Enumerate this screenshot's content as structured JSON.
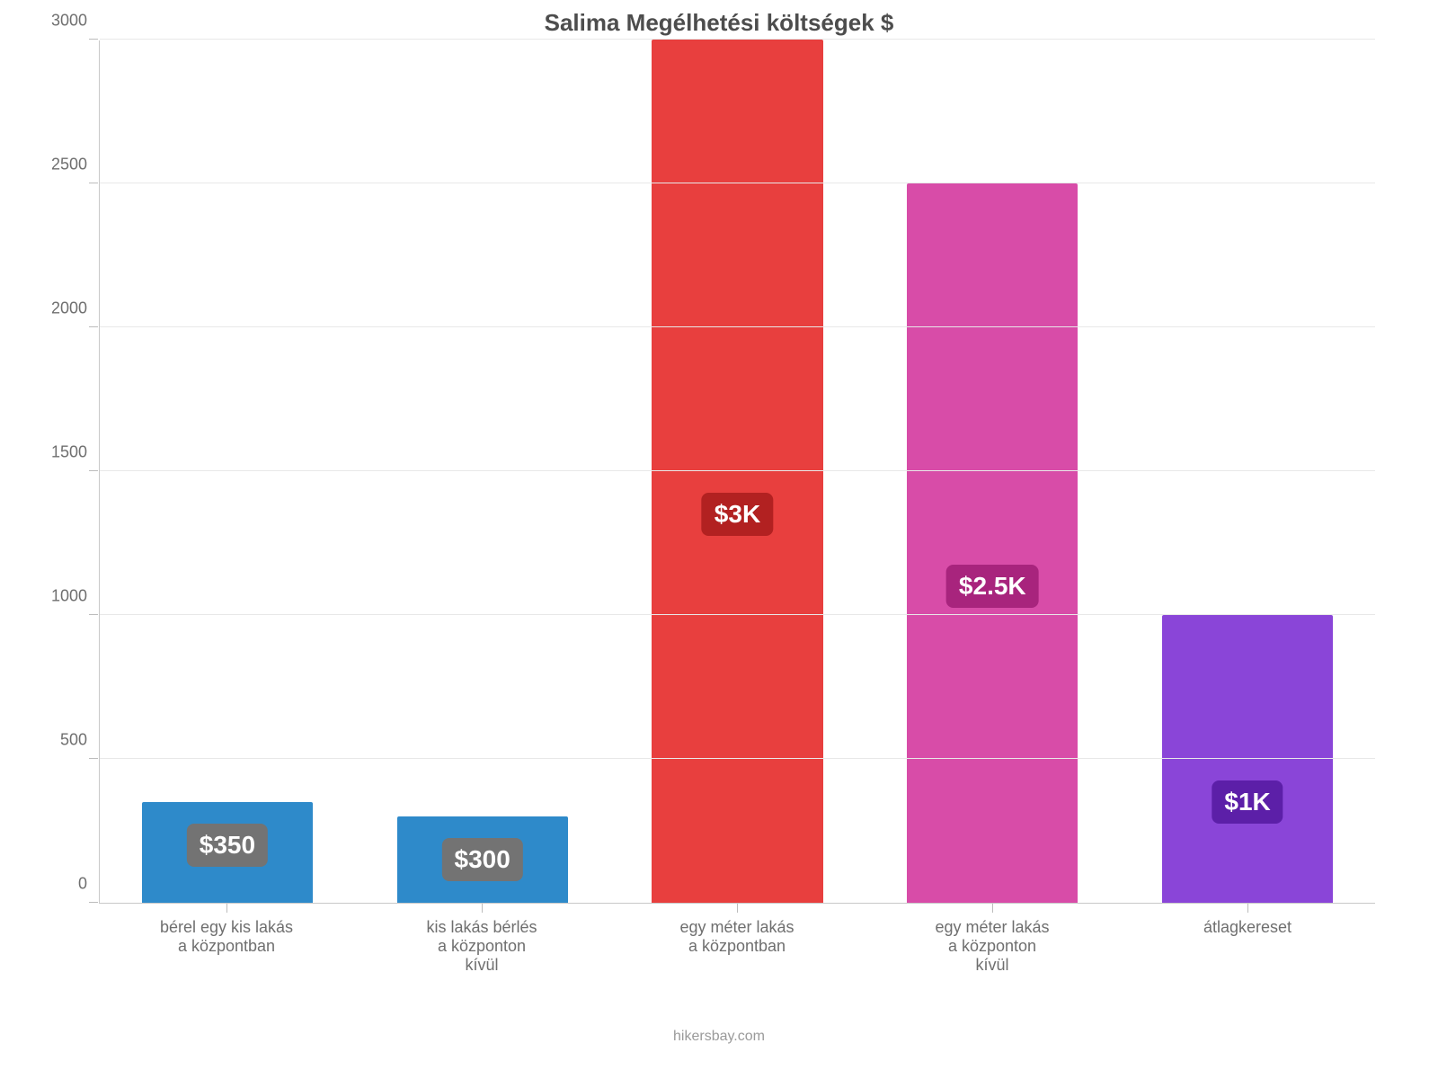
{
  "chart": {
    "type": "bar",
    "title": "Salima Megélhetési költségek $",
    "title_fontsize": 26,
    "title_color": "#4d4d4d",
    "background_color": "#ffffff",
    "grid_color": "#e8e8e8",
    "axis_color": "#c9c9c9",
    "tick_color": "#bcbcbc",
    "label_color": "#6f6f6f",
    "label_fontsize": 18,
    "ylim": [
      0,
      3000
    ],
    "ytick_step": 500,
    "yticks": [
      0,
      500,
      1000,
      1500,
      2000,
      2500,
      3000
    ],
    "bar_width": 0.67,
    "categories": [
      [
        "bérel egy kis lakás",
        "a központban"
      ],
      [
        "kis lakás bérlés",
        "a központon",
        "kívül"
      ],
      [
        "egy méter lakás",
        "a központban"
      ],
      [
        "egy méter lakás",
        "a központon",
        "kívül"
      ],
      [
        "átlagkereset"
      ]
    ],
    "values": [
      350,
      300,
      3000,
      2500,
      1000
    ],
    "value_labels": [
      "$350",
      "$300",
      "$3K",
      "$2.5K",
      "$1K"
    ],
    "bar_colors": [
      "#2e8aca",
      "#2e8aca",
      "#e83f3e",
      "#d84ca8",
      "#8a45d8"
    ],
    "badge_colors": [
      "#737373",
      "#737373",
      "#b22121",
      "#a8247d",
      "#5c1fa8"
    ],
    "badge_fontsize": 28,
    "badge_text_color": "#ffffff",
    "credit": "hikersbay.com",
    "credit_color": "#9a9a9a",
    "credit_fontsize": 16
  }
}
